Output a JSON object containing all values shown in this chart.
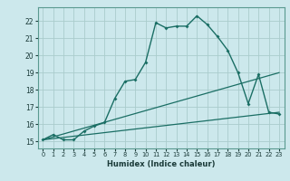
{
  "xlabel": "Humidex (Indice chaleur)",
  "ylabel": "",
  "bg_color": "#cce8ec",
  "grid_color": "#aacccc",
  "line_color": "#1a6e64",
  "xlim": [
    -0.5,
    23.5
  ],
  "ylim": [
    14.6,
    22.8
  ],
  "xticks": [
    0,
    1,
    2,
    3,
    4,
    5,
    6,
    7,
    8,
    9,
    10,
    11,
    12,
    13,
    14,
    15,
    16,
    17,
    18,
    19,
    20,
    21,
    22,
    23
  ],
  "yticks": [
    15,
    16,
    17,
    18,
    19,
    20,
    21,
    22
  ],
  "curve1_x": [
    0,
    1,
    2,
    3,
    4,
    5,
    6,
    7,
    8,
    9,
    10,
    11,
    12,
    13,
    14,
    15,
    16,
    17,
    18,
    19,
    20,
    21,
    22,
    23
  ],
  "curve1_y": [
    15.1,
    15.4,
    15.1,
    15.1,
    15.6,
    15.9,
    16.1,
    17.5,
    18.5,
    18.6,
    19.6,
    21.9,
    21.6,
    21.7,
    21.7,
    22.3,
    21.8,
    21.1,
    20.3,
    19.0,
    17.2,
    18.9,
    16.7,
    16.6
  ],
  "curve2_x": [
    0,
    23
  ],
  "curve2_y": [
    15.1,
    19.0
  ],
  "curve3_x": [
    0,
    23
  ],
  "curve3_y": [
    15.1,
    16.7
  ]
}
